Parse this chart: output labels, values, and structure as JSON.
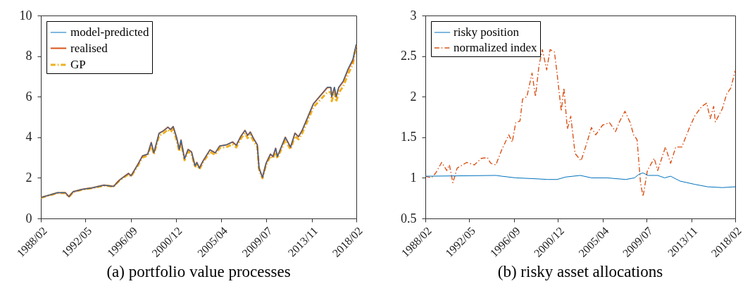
{
  "chart_data": [
    {
      "type": "line",
      "title": "(a) portfolio value processes",
      "x": [
        "1988-02",
        "1989-09",
        "1990-06",
        "1990-10",
        "1991-03",
        "1992-02",
        "1992-12",
        "1994-02",
        "1995-01",
        "1995-08",
        "1996-06",
        "1996-09",
        "1997-05",
        "1997-10",
        "1998-04",
        "1998-08",
        "1998-11",
        "1999-05",
        "1999-10",
        "2000-03",
        "2000-06",
        "2000-09",
        "2001-01",
        "2001-04",
        "2001-06",
        "2001-10",
        "2002-02",
        "2002-06",
        "2002-10",
        "2002-12",
        "2003-03",
        "2003-07",
        "2004-03",
        "2004-09",
        "2005-02",
        "2005-10",
        "2006-05",
        "2006-09",
        "2007-02",
        "2007-07",
        "2007-10",
        "2008-01",
        "2008-05",
        "2008-09",
        "2008-11",
        "2009-03",
        "2009-07",
        "2009-12",
        "2010-03",
        "2010-06",
        "2010-08",
        "2011-05",
        "2011-11",
        "2012-04",
        "2012-08",
        "2012-12",
        "2013-08",
        "2014-01",
        "2014-09",
        "2015-05",
        "2015-09",
        "2015-10",
        "2016-01",
        "2016-03",
        "2016-06",
        "2016-11",
        "2017-05",
        "2017-10",
        "2018-02"
      ],
      "series": [
        {
          "name": "model-predicted",
          "color": "#0072bd",
          "line_style": "solid",
          "values": [
            1.03,
            1.27,
            1.27,
            1.07,
            1.32,
            1.44,
            1.5,
            1.64,
            1.58,
            1.9,
            2.22,
            2.1,
            2.68,
            3.08,
            3.17,
            3.74,
            3.23,
            4.2,
            4.32,
            4.5,
            4.38,
            4.53,
            3.97,
            3.4,
            3.86,
            2.94,
            3.4,
            3.28,
            2.59,
            2.76,
            2.48,
            2.82,
            3.38,
            3.23,
            3.57,
            3.63,
            3.77,
            3.6,
            4.03,
            4.34,
            4.09,
            4.26,
            3.92,
            3.63,
            2.48,
            2.02,
            2.71,
            3.17,
            3.05,
            3.46,
            3.05,
            4.0,
            3.51,
            4.2,
            4.03,
            4.32,
            5.13,
            5.65,
            6.05,
            6.47,
            6.47,
            6.0,
            6.47,
            6.0,
            6.48,
            6.78,
            7.42,
            7.85,
            8.6
          ]
        },
        {
          "name": "realised",
          "color": "#d95319",
          "line_style": "solid",
          "values": [
            1.03,
            1.27,
            1.27,
            1.07,
            1.32,
            1.44,
            1.5,
            1.64,
            1.58,
            1.9,
            2.22,
            2.1,
            2.68,
            3.08,
            3.17,
            3.74,
            3.23,
            4.2,
            4.32,
            4.5,
            4.38,
            4.53,
            3.97,
            3.4,
            3.86,
            2.94,
            3.4,
            3.28,
            2.59,
            2.76,
            2.48,
            2.82,
            3.38,
            3.23,
            3.57,
            3.63,
            3.77,
            3.6,
            4.03,
            4.34,
            4.09,
            4.26,
            3.92,
            3.63,
            2.48,
            2.02,
            2.71,
            3.17,
            3.05,
            3.46,
            3.05,
            4.0,
            3.51,
            4.2,
            4.03,
            4.32,
            5.13,
            5.65,
            6.05,
            6.45,
            6.45,
            5.99,
            6.45,
            5.99,
            6.45,
            6.74,
            7.37,
            7.78,
            8.58
          ]
        },
        {
          "name": "GP",
          "color": "#edb120",
          "line_style": "dashed",
          "values": [
            1.02,
            1.25,
            1.25,
            1.06,
            1.3,
            1.43,
            1.49,
            1.62,
            1.57,
            1.88,
            2.18,
            2.07,
            2.62,
            3.0,
            3.1,
            3.62,
            3.15,
            4.08,
            4.2,
            4.38,
            4.26,
            4.4,
            3.85,
            3.3,
            3.75,
            2.87,
            3.3,
            3.18,
            2.52,
            2.69,
            2.42,
            2.75,
            3.28,
            3.14,
            3.47,
            3.52,
            3.66,
            3.5,
            3.92,
            4.2,
            3.96,
            4.12,
            3.8,
            3.52,
            2.42,
            1.98,
            2.64,
            3.07,
            2.96,
            3.35,
            2.96,
            3.87,
            3.4,
            4.06,
            3.9,
            4.18,
            4.97,
            5.48,
            5.85,
            6.22,
            6.22,
            5.78,
            6.22,
            5.75,
            6.2,
            6.5,
            7.15,
            7.6,
            8.5
          ]
        }
      ],
      "xlim": [
        "1988-02",
        "2018-02"
      ],
      "xticks": [
        {
          "value": "1988-02",
          "label": "1988/02"
        },
        {
          "value": "1992-05",
          "label": "1992/05"
        },
        {
          "value": "1996-09",
          "label": "1996/09"
        },
        {
          "value": "2000-12",
          "label": "2000/12"
        },
        {
          "value": "2005-04",
          "label": "2005/04"
        },
        {
          "value": "2009-07",
          "label": "2009/07"
        },
        {
          "value": "2013-11",
          "label": "2013/11"
        },
        {
          "value": "2018-02",
          "label": "2018/02"
        }
      ],
      "ylim": [
        0,
        10
      ],
      "yticks": [
        0,
        2,
        4,
        6,
        8,
        10
      ],
      "grid": false,
      "legend": "top left",
      "marker": "none"
    },
    {
      "type": "line",
      "title": "(b) risky asset allocations",
      "series": [
        {
          "name": "risky position",
          "color": "#0072bd",
          "line_style": "solid",
          "x": [
            "1988-02",
            "1994-12",
            "1995-07",
            "1996-11",
            "1998-08",
            "1999-12",
            "2000-11",
            "2001-09",
            "2003-02",
            "2004-03",
            "2005-09",
            "2007-07",
            "2008-05",
            "2008-11",
            "2009-03",
            "2009-09",
            "2010-08",
            "2011-04",
            "2011-11",
            "2012-10",
            "2014-03",
            "2015-06",
            "2016-11",
            "2018-02"
          ],
          "values": [
            1.02,
            1.03,
            1.02,
            1.0,
            0.99,
            0.98,
            0.98,
            1.01,
            1.03,
            1.0,
            1.0,
            0.98,
            1.0,
            1.05,
            1.06,
            1.03,
            1.03,
            1.0,
            1.02,
            0.96,
            0.92,
            0.89,
            0.88,
            0.89
          ]
        },
        {
          "name": "normalized index",
          "color": "#d95319",
          "line_style": "dashed",
          "x": [
            "1988-02",
            "1988-09",
            "1989-02",
            "1989-09",
            "1990-03",
            "1990-06",
            "1990-10",
            "1991-03",
            "1992-02",
            "1992-11",
            "1993-07",
            "1994-02",
            "1994-06",
            "1994-12",
            "1995-07",
            "1996-03",
            "1996-07",
            "1996-11",
            "1997-04",
            "1997-07",
            "1997-12",
            "1998-06",
            "1998-10",
            "1999-02",
            "1999-06",
            "1999-11",
            "2000-03",
            "2000-08",
            "2000-11",
            "2001-04",
            "2001-07",
            "2001-11",
            "2002-03",
            "2002-08",
            "2003-03",
            "2003-10",
            "2004-03",
            "2004-08",
            "2005-04",
            "2005-12",
            "2006-07",
            "2006-12",
            "2007-06",
            "2007-12",
            "2008-04",
            "2008-08",
            "2008-12",
            "2009-03",
            "2009-08",
            "2010-04",
            "2010-08",
            "2011-05",
            "2011-11",
            "2012-05",
            "2012-12",
            "2013-09",
            "2014-03",
            "2014-11",
            "2015-05",
            "2015-09",
            "2016-01",
            "2016-03",
            "2016-11",
            "2017-04",
            "2017-09",
            "2018-02"
          ],
          "values": [
            1.02,
            1.0,
            1.06,
            1.19,
            1.09,
            1.16,
            0.94,
            1.12,
            1.19,
            1.16,
            1.24,
            1.25,
            1.18,
            1.16,
            1.35,
            1.53,
            1.44,
            1.68,
            1.7,
            1.97,
            2.0,
            2.29,
            2.0,
            2.38,
            2.58,
            2.33,
            2.58,
            2.55,
            2.29,
            1.82,
            2.11,
            1.6,
            1.76,
            1.3,
            1.21,
            1.44,
            1.62,
            1.53,
            1.65,
            1.68,
            1.57,
            1.7,
            1.82,
            1.68,
            1.53,
            1.47,
            0.94,
            0.77,
            1.09,
            1.24,
            1.09,
            1.38,
            1.18,
            1.38,
            1.38,
            1.62,
            1.76,
            1.88,
            1.92,
            1.73,
            1.88,
            1.69,
            1.85,
            2.03,
            2.11,
            2.32
          ]
        }
      ],
      "xlim": [
        "1988-02",
        "2018-02"
      ],
      "xticks": [
        {
          "value": "1988-02",
          "label": "1988/02"
        },
        {
          "value": "1992-05",
          "label": "1992/05"
        },
        {
          "value": "1996-09",
          "label": "1996/09"
        },
        {
          "value": "2000-12",
          "label": "2000/12"
        },
        {
          "value": "2005-04",
          "label": "2005/04"
        },
        {
          "value": "2009-07",
          "label": "2009/07"
        },
        {
          "value": "2013-11",
          "label": "2013/11"
        },
        {
          "value": "2018-02",
          "label": "2018/02"
        }
      ],
      "ylim": [
        0.5,
        3
      ],
      "yticks": [
        0.5,
        1,
        1.5,
        2,
        2.5,
        3
      ],
      "grid": false,
      "legend": "top left",
      "marker": "none"
    }
  ]
}
